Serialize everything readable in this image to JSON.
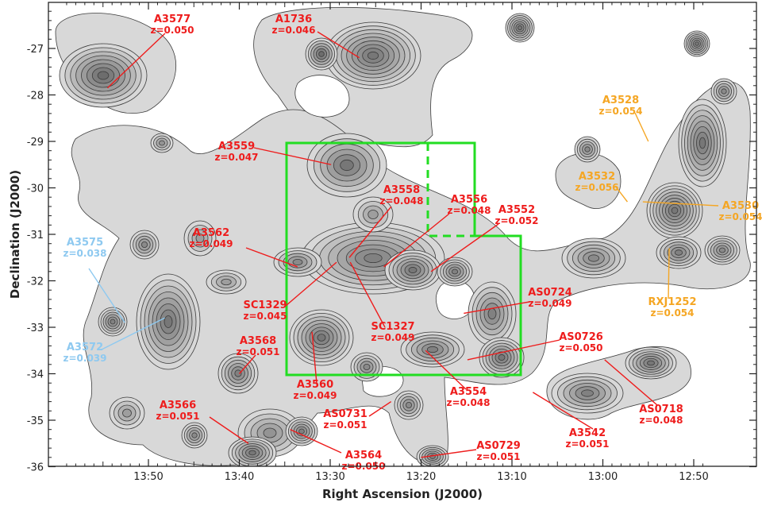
{
  "chart_data": {
    "type": "scatter",
    "title": "",
    "xlabel": "Right Ascension (J2000)",
    "ylabel": "Declination (J2000)",
    "x_tick_labels": [
      "13:50",
      "13:40",
      "13:30",
      "13:20",
      "13:10",
      "13:00",
      "12:50"
    ],
    "y_tick_labels": [
      "-27",
      "-28",
      "-29",
      "-30",
      "-31",
      "-32",
      "-33",
      "-34",
      "-35",
      "-36"
    ],
    "ylim": [
      -36,
      -26
    ],
    "colors": {
      "red": "#ee1c1c",
      "orange": "#f5a623",
      "lightblue": "#8ec9f0",
      "box": "#22dd22",
      "contour_fill": "#d8d8d8",
      "contour_line": "#3c3c3c"
    },
    "clusters": [
      {
        "name": "A3577",
        "z": "z=0.050",
        "ra": "13:54.5",
        "dec": -27.85,
        "color": "red"
      },
      {
        "name": "A1736",
        "z": "z=0.046",
        "ra": "13:26.8",
        "dec": -27.2,
        "color": "red"
      },
      {
        "name": "A3559",
        "z": "z=0.047",
        "ra": "13:29.9",
        "dec": -29.5,
        "color": "red"
      },
      {
        "name": "A3558",
        "z": "z=0.048",
        "ra": "13:27.9",
        "dec": -31.5,
        "color": "red"
      },
      {
        "name": "A3556",
        "z": "z=0.048",
        "ra": "13:24.1",
        "dec": -31.7,
        "color": "red"
      },
      {
        "name": "A3552",
        "z": "z=0.052",
        "ra": "13:18.9",
        "dec": -31.8,
        "color": "red"
      },
      {
        "name": "A3562",
        "z": "z=0.049",
        "ra": "13:33.6",
        "dec": -31.7,
        "color": "red"
      },
      {
        "name": "SC1329",
        "z": "z=0.045",
        "ra": "13:29.3",
        "dec": -31.6,
        "color": "red"
      },
      {
        "name": "SC1327",
        "z": "z=0.049",
        "ra": "13:27.8",
        "dec": -31.6,
        "color": "red"
      },
      {
        "name": "A3575",
        "z": "z=0.038",
        "ra": "13:52.6",
        "dec": -32.9,
        "color": "lightblue"
      },
      {
        "name": "A3572",
        "z": "z=0.039",
        "ra": "13:48.2",
        "dec": -32.8,
        "color": "lightblue"
      },
      {
        "name": "A3568",
        "z": "z=0.051",
        "ra": "13:40.0",
        "dec": -34.0,
        "color": "red"
      },
      {
        "name": "A3560",
        "z": "z=0.049",
        "ra": "13:32.0",
        "dec": -33.1,
        "color": "red"
      },
      {
        "name": "A3554",
        "z": "z=0.048",
        "ra": "13:19.5",
        "dec": -33.5,
        "color": "red"
      },
      {
        "name": "AS0724",
        "z": "z=0.049",
        "ra": "13:15.3",
        "dec": -32.7,
        "color": "red"
      },
      {
        "name": "AS0726",
        "z": "z=0.050",
        "ra": "13:14.9",
        "dec": -33.7,
        "color": "red"
      },
      {
        "name": "A3566",
        "z": "z=0.051",
        "ra": "13:39.0",
        "dec": -35.5,
        "color": "red"
      },
      {
        "name": "A3564",
        "z": "z=0.050",
        "ra": "13:34.4",
        "dec": -35.2,
        "color": "red"
      },
      {
        "name": "AS0731",
        "z": "z=0.051",
        "ra": "13:23.3",
        "dec": -34.6,
        "color": "red"
      },
      {
        "name": "AS0729",
        "z": "z=0.051",
        "ra": "13:20.0",
        "dec": -35.8,
        "color": "red"
      },
      {
        "name": "A3542",
        "z": "z=0.051",
        "ra": "13:07.7",
        "dec": -34.4,
        "color": "red"
      },
      {
        "name": "AS0718",
        "z": "z=0.048",
        "ra": "12:59.8",
        "dec": -33.7,
        "color": "red"
      },
      {
        "name": "A3528",
        "z": "z=0.054",
        "ra": "12:55.0",
        "dec": -29.0,
        "color": "orange"
      },
      {
        "name": "A3532",
        "z": "z=0.056",
        "ra": "12:57.3",
        "dec": -30.3,
        "color": "orange"
      },
      {
        "name": "A3530",
        "z": "z=0.054",
        "ra": "12:55.6",
        "dec": -30.3,
        "color": "orange"
      },
      {
        "name": "RXJ1252",
        "z": "z=0.054",
        "ra": "12:52.7",
        "dec": -31.3,
        "color": "orange"
      }
    ]
  }
}
